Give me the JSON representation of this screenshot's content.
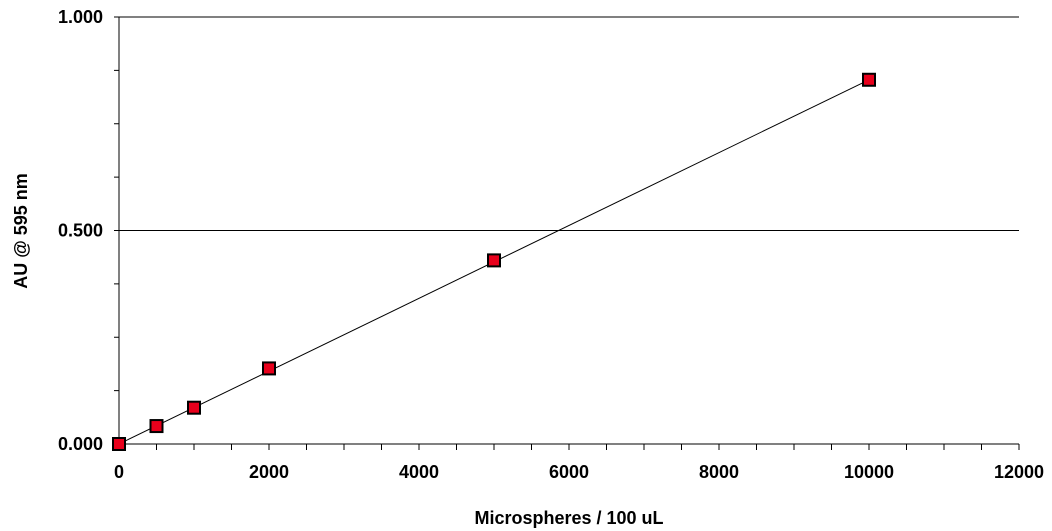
{
  "chart_data": {
    "type": "scatter",
    "title": "",
    "xlabel": "Microspheres / 100 uL",
    "ylabel": "AU @ 595 nm",
    "xlim": [
      0,
      12000
    ],
    "ylim": [
      0,
      1
    ],
    "x_ticks": [
      0,
      2000,
      4000,
      6000,
      8000,
      10000,
      12000
    ],
    "x_tick_labels": [
      "0",
      "2000",
      "4000",
      "6000",
      "8000",
      "10000",
      "12000"
    ],
    "x_minor_step": 500,
    "y_ticks": [
      0,
      0.5,
      1
    ],
    "y_tick_labels": [
      "0.000",
      "0.500",
      "1.000"
    ],
    "y_minor_step": 0.125,
    "grid": "horizontal major gridlines",
    "legend": "none",
    "series": [
      {
        "x": [
          0,
          500,
          1000,
          2000,
          5000,
          10000
        ],
        "y": [
          0.0,
          0.042,
          0.085,
          0.177,
          0.43,
          0.853
        ],
        "marker": "square",
        "marker_color": "#e8001c",
        "marker_edge_color": "#000000"
      }
    ],
    "trendline": {
      "type": "linear",
      "x": [
        0,
        10000
      ],
      "y": [
        0.0,
        0.853
      ],
      "color": "#000000"
    }
  }
}
